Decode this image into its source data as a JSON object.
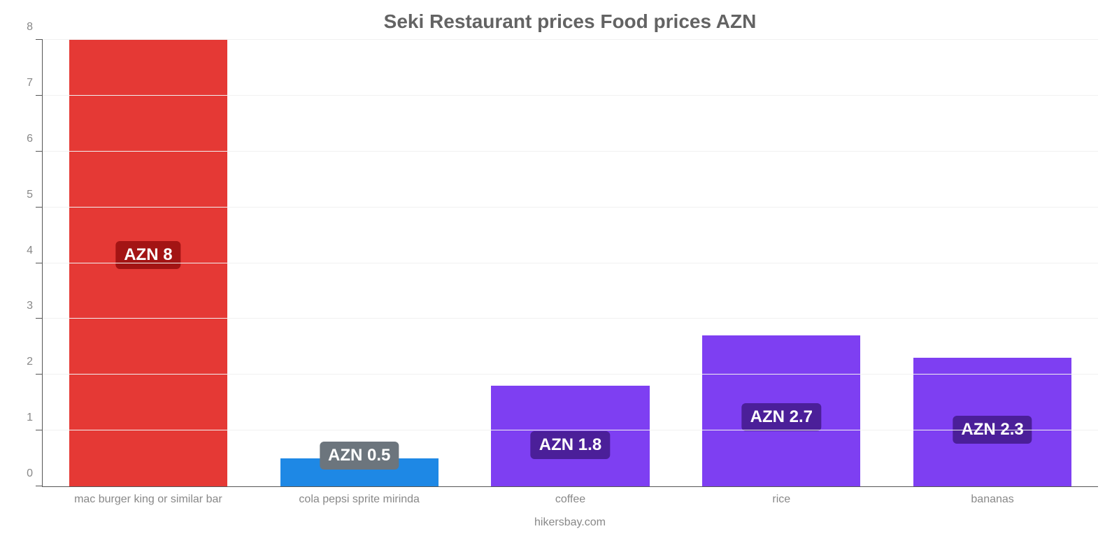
{
  "chart": {
    "type": "bar",
    "title": "Seki Restaurant prices Food prices AZN",
    "title_color": "#636363",
    "title_fontsize": 28,
    "background_color": "#ffffff",
    "grid_color": "#f1f1f1",
    "axis_color": "#555555",
    "tick_label_color": "#888888",
    "tick_label_fontsize": 16,
    "ylim": [
      0,
      8
    ],
    "ytick_step": 1,
    "bar_width_pct": 15,
    "group_width_pct": 20,
    "categories": [
      "mac burger king or similar bar",
      "cola pepsi sprite mirinda",
      "coffee",
      "rice",
      "bananas"
    ],
    "values": [
      8,
      0.5,
      1.8,
      2.7,
      2.3
    ],
    "value_labels": [
      "AZN 8",
      "AZN 0.5",
      "AZN 1.8",
      "AZN 2.7",
      "AZN 2.3"
    ],
    "bar_colors": [
      "#e53935",
      "#1e88e5",
      "#7e3ff2",
      "#7e3ff2",
      "#7e3ff2"
    ],
    "badge_colors": [
      "#a31414",
      "#6c757d",
      "#4b1f99",
      "#4b1f99",
      "#4b1f99"
    ],
    "badge_text_color": "#ffffff",
    "badge_fontsize": 24,
    "attribution": "hikersbay.com"
  }
}
